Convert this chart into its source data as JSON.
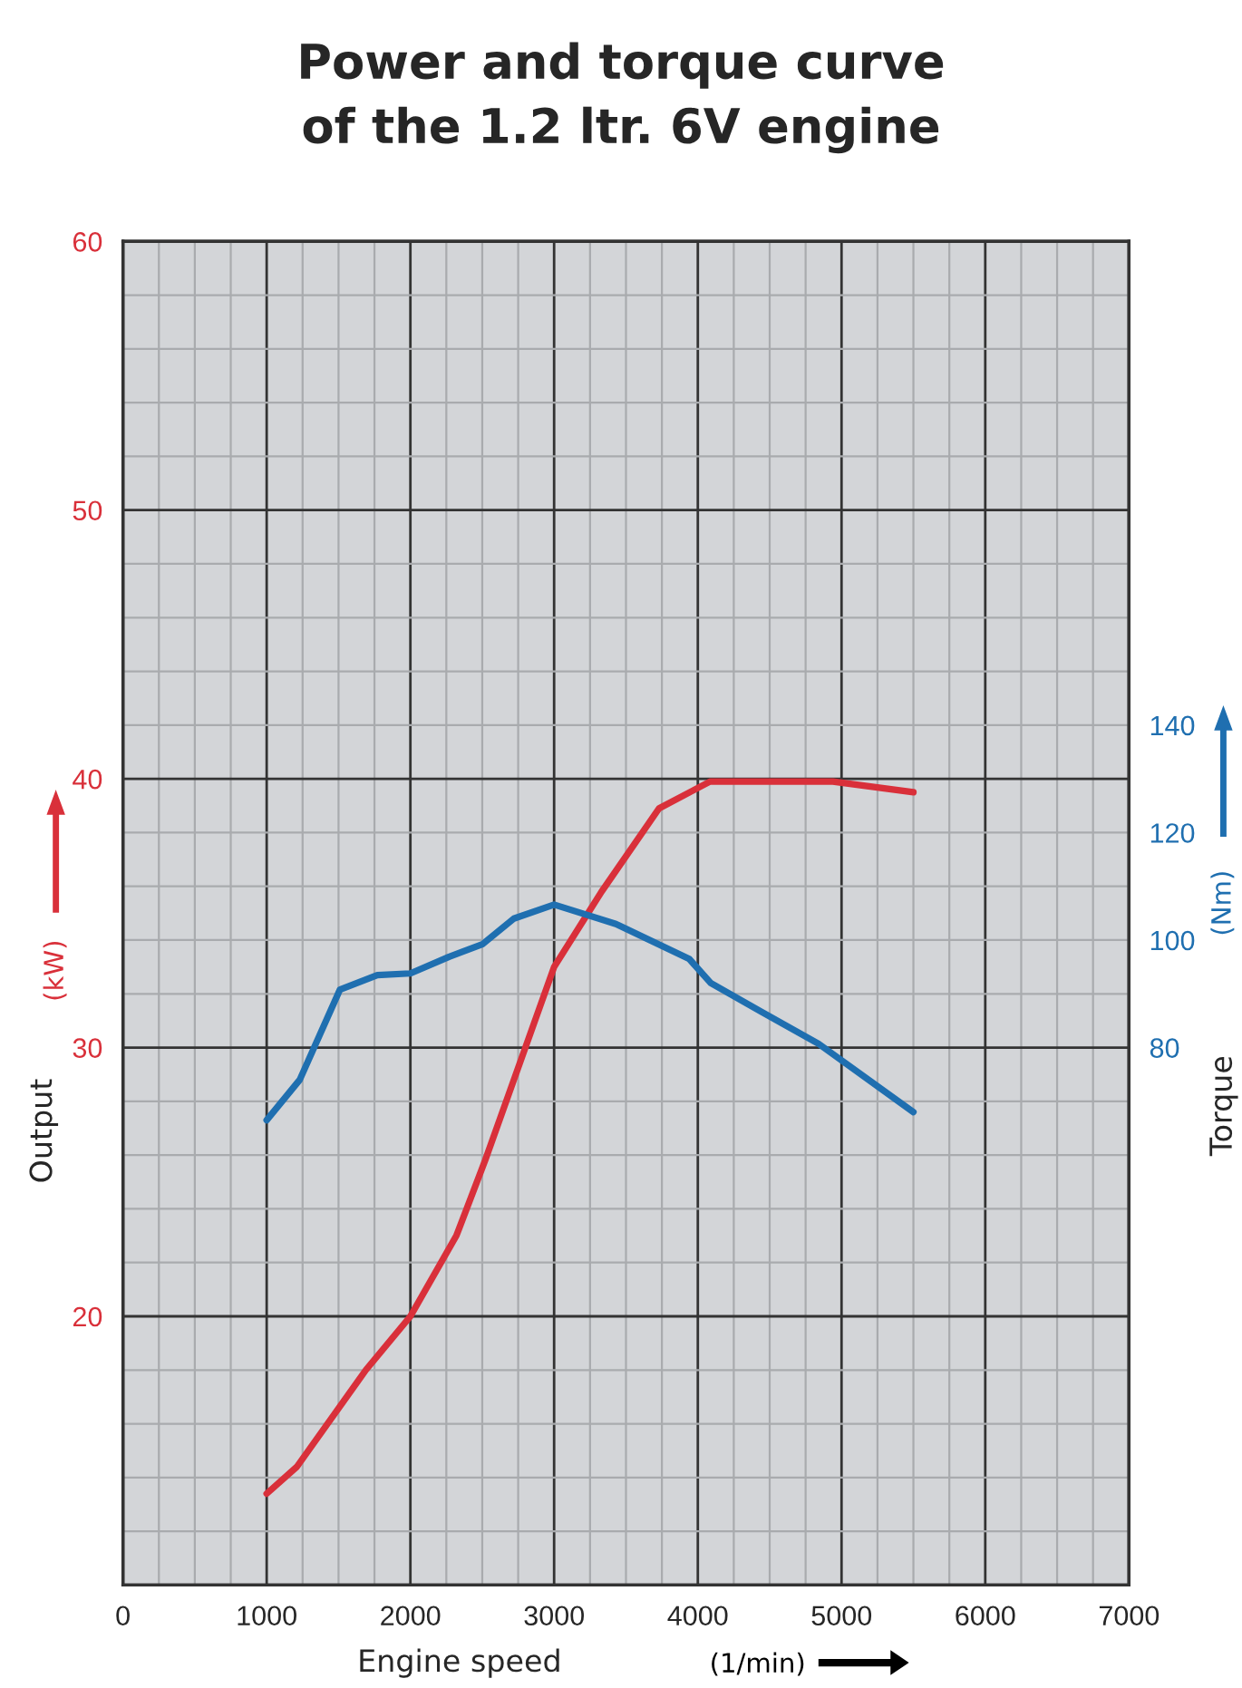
{
  "chart_data": {
    "type": "line",
    "title": "Power and torque curve\nof the 1.2 ltr. 6V engine",
    "xlabel": "Engine speed",
    "ylabel": "Output",
    "y2label": "Torque",
    "annotations": [
      "(kW)",
      "(Nm)",
      "(1/min)"
    ],
    "series": [
      {
        "color": "#d9303a",
        "x": [
          1000,
          1210,
          1690,
          2000,
          2320,
          2520,
          2720,
          3000,
          3330,
          3730,
          4085,
          4940,
          5500
        ],
        "values": [
          13.4,
          14.4,
          18.0,
          20.0,
          23.0,
          25.8,
          28.8,
          33.0,
          35.8,
          38.9,
          39.9,
          39.9,
          39.5
        ]
      },
      {
        "color": "#1f6fb0",
        "axis": "y2",
        "x": [
          1000,
          1230,
          1510,
          1770,
          2000,
          2270,
          2500,
          2720,
          3000,
          3430,
          3940,
          4090,
          4440,
          4840,
          5500
        ],
        "values": [
          66.5,
          74,
          90.8,
          93.5,
          93.8,
          96.9,
          99.2,
          104,
          106.6,
          103,
          96.5,
          92,
          86.7,
          80.7,
          68
        ]
      }
    ],
    "xlim": [
      0,
      7000
    ],
    "xticks": [
      0,
      1000,
      2000,
      3000,
      4000,
      5000,
      6000,
      7000
    ],
    "ylim": [
      10,
      60
    ],
    "yticks": [
      20,
      30,
      40,
      50,
      60
    ],
    "y2lim": [
      -20,
      230
    ],
    "y2ticks": [
      80,
      100,
      120,
      140
    ],
    "grid": true,
    "marker": "none",
    "line_style": "solid"
  }
}
